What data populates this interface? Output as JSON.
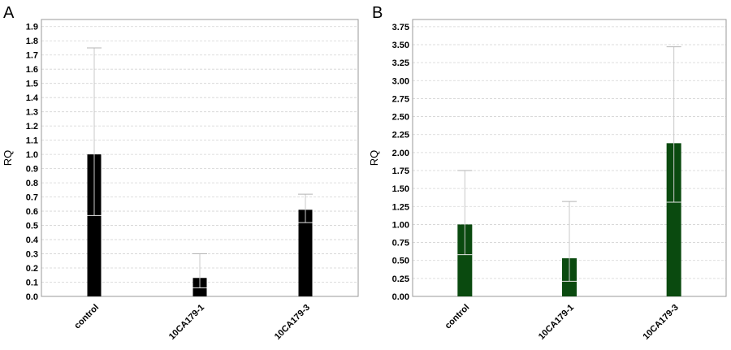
{
  "chart_data": [
    {
      "type": "bar",
      "panel_label": "A",
      "ylabel": "RQ",
      "categories": [
        "control",
        "10CA179-1",
        "10CA179-3"
      ],
      "values": [
        1.0,
        0.13,
        0.61
      ],
      "error_min": [
        0.57,
        0.06,
        0.52
      ],
      "error_max": [
        1.75,
        0.3,
        0.72
      ],
      "ylim": [
        0,
        1.95
      ],
      "yticks": [
        "0.0",
        "0.1",
        "0.2",
        "0.3",
        "0.4",
        "0.5",
        "0.6",
        "0.7",
        "0.8",
        "0.9",
        "1.0",
        "1.1",
        "1.2",
        "1.3",
        "1.4",
        "1.5",
        "1.6",
        "1.7",
        "1.8",
        "1.9"
      ],
      "bar_color": "#000000",
      "grid": true
    },
    {
      "type": "bar",
      "panel_label": "B",
      "ylabel": "RQ",
      "categories": [
        "control",
        "10CA179-1",
        "10CA179-3"
      ],
      "values": [
        1.0,
        0.53,
        2.13
      ],
      "error_min": [
        0.58,
        0.21,
        1.31
      ],
      "error_max": [
        1.75,
        1.32,
        3.47
      ],
      "ylim": [
        0,
        3.85
      ],
      "yticks": [
        "0.00",
        "0.25",
        "0.50",
        "0.75",
        "1.00",
        "1.25",
        "1.50",
        "1.75",
        "2.00",
        "2.25",
        "2.50",
        "2.75",
        "3.00",
        "3.25",
        "3.50",
        "3.75"
      ],
      "bar_color": "#0a4a0f",
      "grid": true
    }
  ]
}
